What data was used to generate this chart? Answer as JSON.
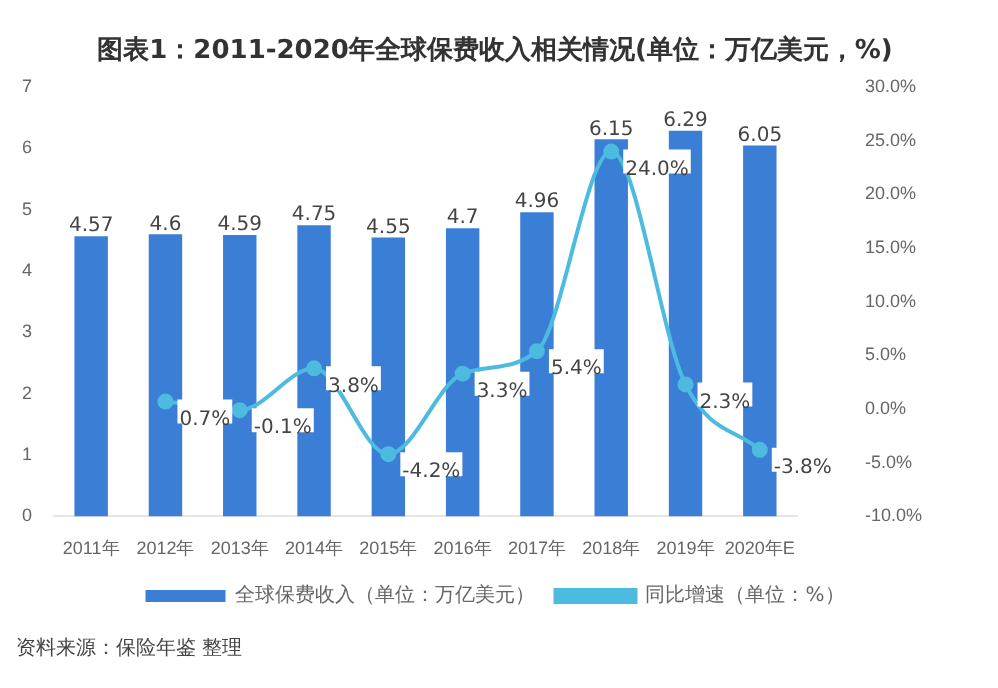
{
  "chart_data": {
    "type": "bar",
    "title": "图表1：2011-2020年全球保费收入相关情况(单位：万亿美元，%)",
    "categories": [
      "2011年",
      "2012年",
      "2013年",
      "2014年",
      "2015年",
      "2016年",
      "2017年",
      "2018年",
      "2019年",
      "2020年E"
    ],
    "series": [
      {
        "name": "全球保费收入（单位：万亿美元）",
        "color": "#3a7fd5",
        "values": [
          4.57,
          4.6,
          4.59,
          4.75,
          4.55,
          4.7,
          4.96,
          6.15,
          6.29,
          6.05
        ],
        "value_labels": [
          "4.57",
          "4.6",
          "4.59",
          "4.75",
          "4.55",
          "4.7",
          "4.96",
          "6.15",
          "6.29",
          "6.05"
        ]
      },
      {
        "name": "同比增速（单位：%）",
        "type": "line",
        "axis": "y2",
        "color": "#4dbbe0",
        "values": [
          null,
          0.7,
          -0.1,
          3.8,
          -4.2,
          3.3,
          5.4,
          24.0,
          2.3,
          -3.8
        ],
        "value_labels": [
          null,
          "0.7%",
          "-0.1%",
          "3.8%",
          "-4.2%",
          "3.3%",
          "5.4%",
          "24.0%",
          "2.3%",
          "-3.8%"
        ]
      }
    ],
    "ylim": [
      0,
      7
    ],
    "yticks": [
      0,
      1,
      2,
      3,
      4,
      5,
      6,
      7
    ],
    "y2lim": [
      -10,
      30
    ],
    "y2ticks": [
      {
        "value": -10,
        "label": "-10.0%"
      },
      {
        "value": -5,
        "label": "-5.0%"
      },
      {
        "value": 0,
        "label": "0.0%"
      },
      {
        "value": 5,
        "label": "5.0%"
      },
      {
        "value": 10,
        "label": "10.0%"
      },
      {
        "value": 15,
        "label": "15.0%"
      },
      {
        "value": 20,
        "label": "20.0%"
      },
      {
        "value": 25,
        "label": "25.0%"
      },
      {
        "value": 30,
        "label": "30.0%"
      }
    ],
    "marker": "circle",
    "legend": "bottom",
    "grid": false,
    "annotations": [
      "资料来源：保险年鉴 整理"
    ]
  }
}
